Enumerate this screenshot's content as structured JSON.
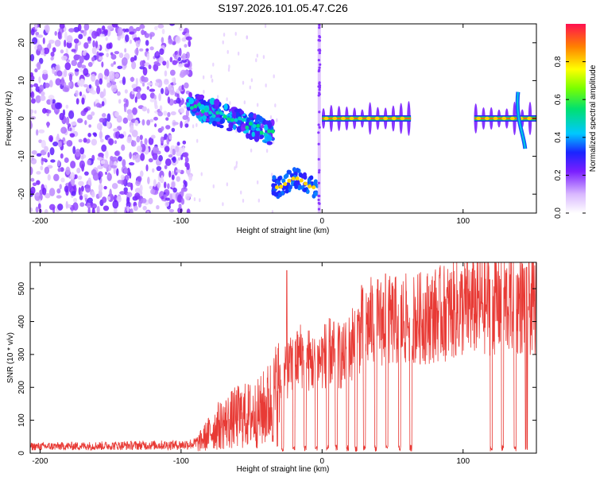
{
  "title": "S197.2026.101.05.47.C26",
  "chart_data": [
    {
      "type": "heatmap",
      "xlabel": "Height of straight line (km)",
      "ylabel": "Frequency (Hz)",
      "xlim": [
        -207,
        152
      ],
      "ylim": [
        -25,
        25
      ],
      "xticks": [
        -200,
        -100,
        0,
        100
      ],
      "yticks": [
        -20,
        -10,
        0,
        10,
        20
      ],
      "colorbar": {
        "label": "Normalized spectral amplitude",
        "range": [
          0,
          1
        ],
        "ticks": [
          0.0,
          0.2,
          0.4,
          0.6,
          0.8
        ]
      },
      "regions": [
        {
          "name": "noise",
          "x": [
            -207,
            -93
          ],
          "freq": [
            -25,
            25
          ],
          "amplitude": 0.1
        },
        {
          "name": "descending-trend",
          "x": [
            -95,
            -35
          ],
          "freq_start": 4,
          "freq_end": -4,
          "amplitude": 0.4
        },
        {
          "name": "negative-band",
          "x": [
            -35,
            -3
          ],
          "freq": -17,
          "amplitude": 0.8
        },
        {
          "name": "vertical-line",
          "x": [
            -2,
            -2
          ],
          "freq": [
            -25,
            25
          ],
          "amplitude": 0.2
        },
        {
          "name": "zero-band-a",
          "x": [
            0,
            63
          ],
          "freq": 0,
          "amplitude": 0.9
        },
        {
          "name": "zero-band-b",
          "x": [
            108,
            152
          ],
          "freq": 0,
          "amplitude": 0.9
        }
      ]
    },
    {
      "type": "line",
      "xlabel": "Height of straight line (km)",
      "ylabel": "SNR (10 * v/v)",
      "xlim": [
        -207,
        152
      ],
      "ylim": [
        0,
        580
      ],
      "xticks": [
        -200,
        -100,
        0,
        100
      ],
      "yticks": [
        0,
        100,
        200,
        300,
        400,
        500
      ],
      "color": "#e83a35",
      "envelope": [
        {
          "x": -207,
          "y": 20
        },
        {
          "x": -100,
          "y": 25
        },
        {
          "x": -88,
          "y": 30
        },
        {
          "x": -75,
          "y": 80
        },
        {
          "x": -60,
          "y": 110
        },
        {
          "x": -45,
          "y": 120
        },
        {
          "x": -35,
          "y": 160
        },
        {
          "x": -25,
          "y": 250
        },
        {
          "x": -15,
          "y": 300
        },
        {
          "x": -5,
          "y": 270
        },
        {
          "x": 5,
          "y": 310
        },
        {
          "x": 15,
          "y": 290
        },
        {
          "x": 25,
          "y": 360
        },
        {
          "x": 35,
          "y": 400
        },
        {
          "x": 50,
          "y": 400
        },
        {
          "x": 70,
          "y": 410
        },
        {
          "x": 90,
          "y": 430
        },
        {
          "x": 110,
          "y": 450
        },
        {
          "x": 130,
          "y": 460
        },
        {
          "x": 152,
          "y": 450
        }
      ],
      "dropouts_x": [
        -28,
        -20,
        -12,
        -4,
        4,
        10,
        18,
        24,
        30,
        38,
        46,
        55,
        63,
        120,
        128,
        137,
        145
      ],
      "spikes": [
        {
          "x": -25,
          "y": 555
        },
        {
          "x": 28,
          "y": 510
        },
        {
          "x": 45,
          "y": 545
        },
        {
          "x": 145,
          "y": 565
        }
      ]
    }
  ]
}
